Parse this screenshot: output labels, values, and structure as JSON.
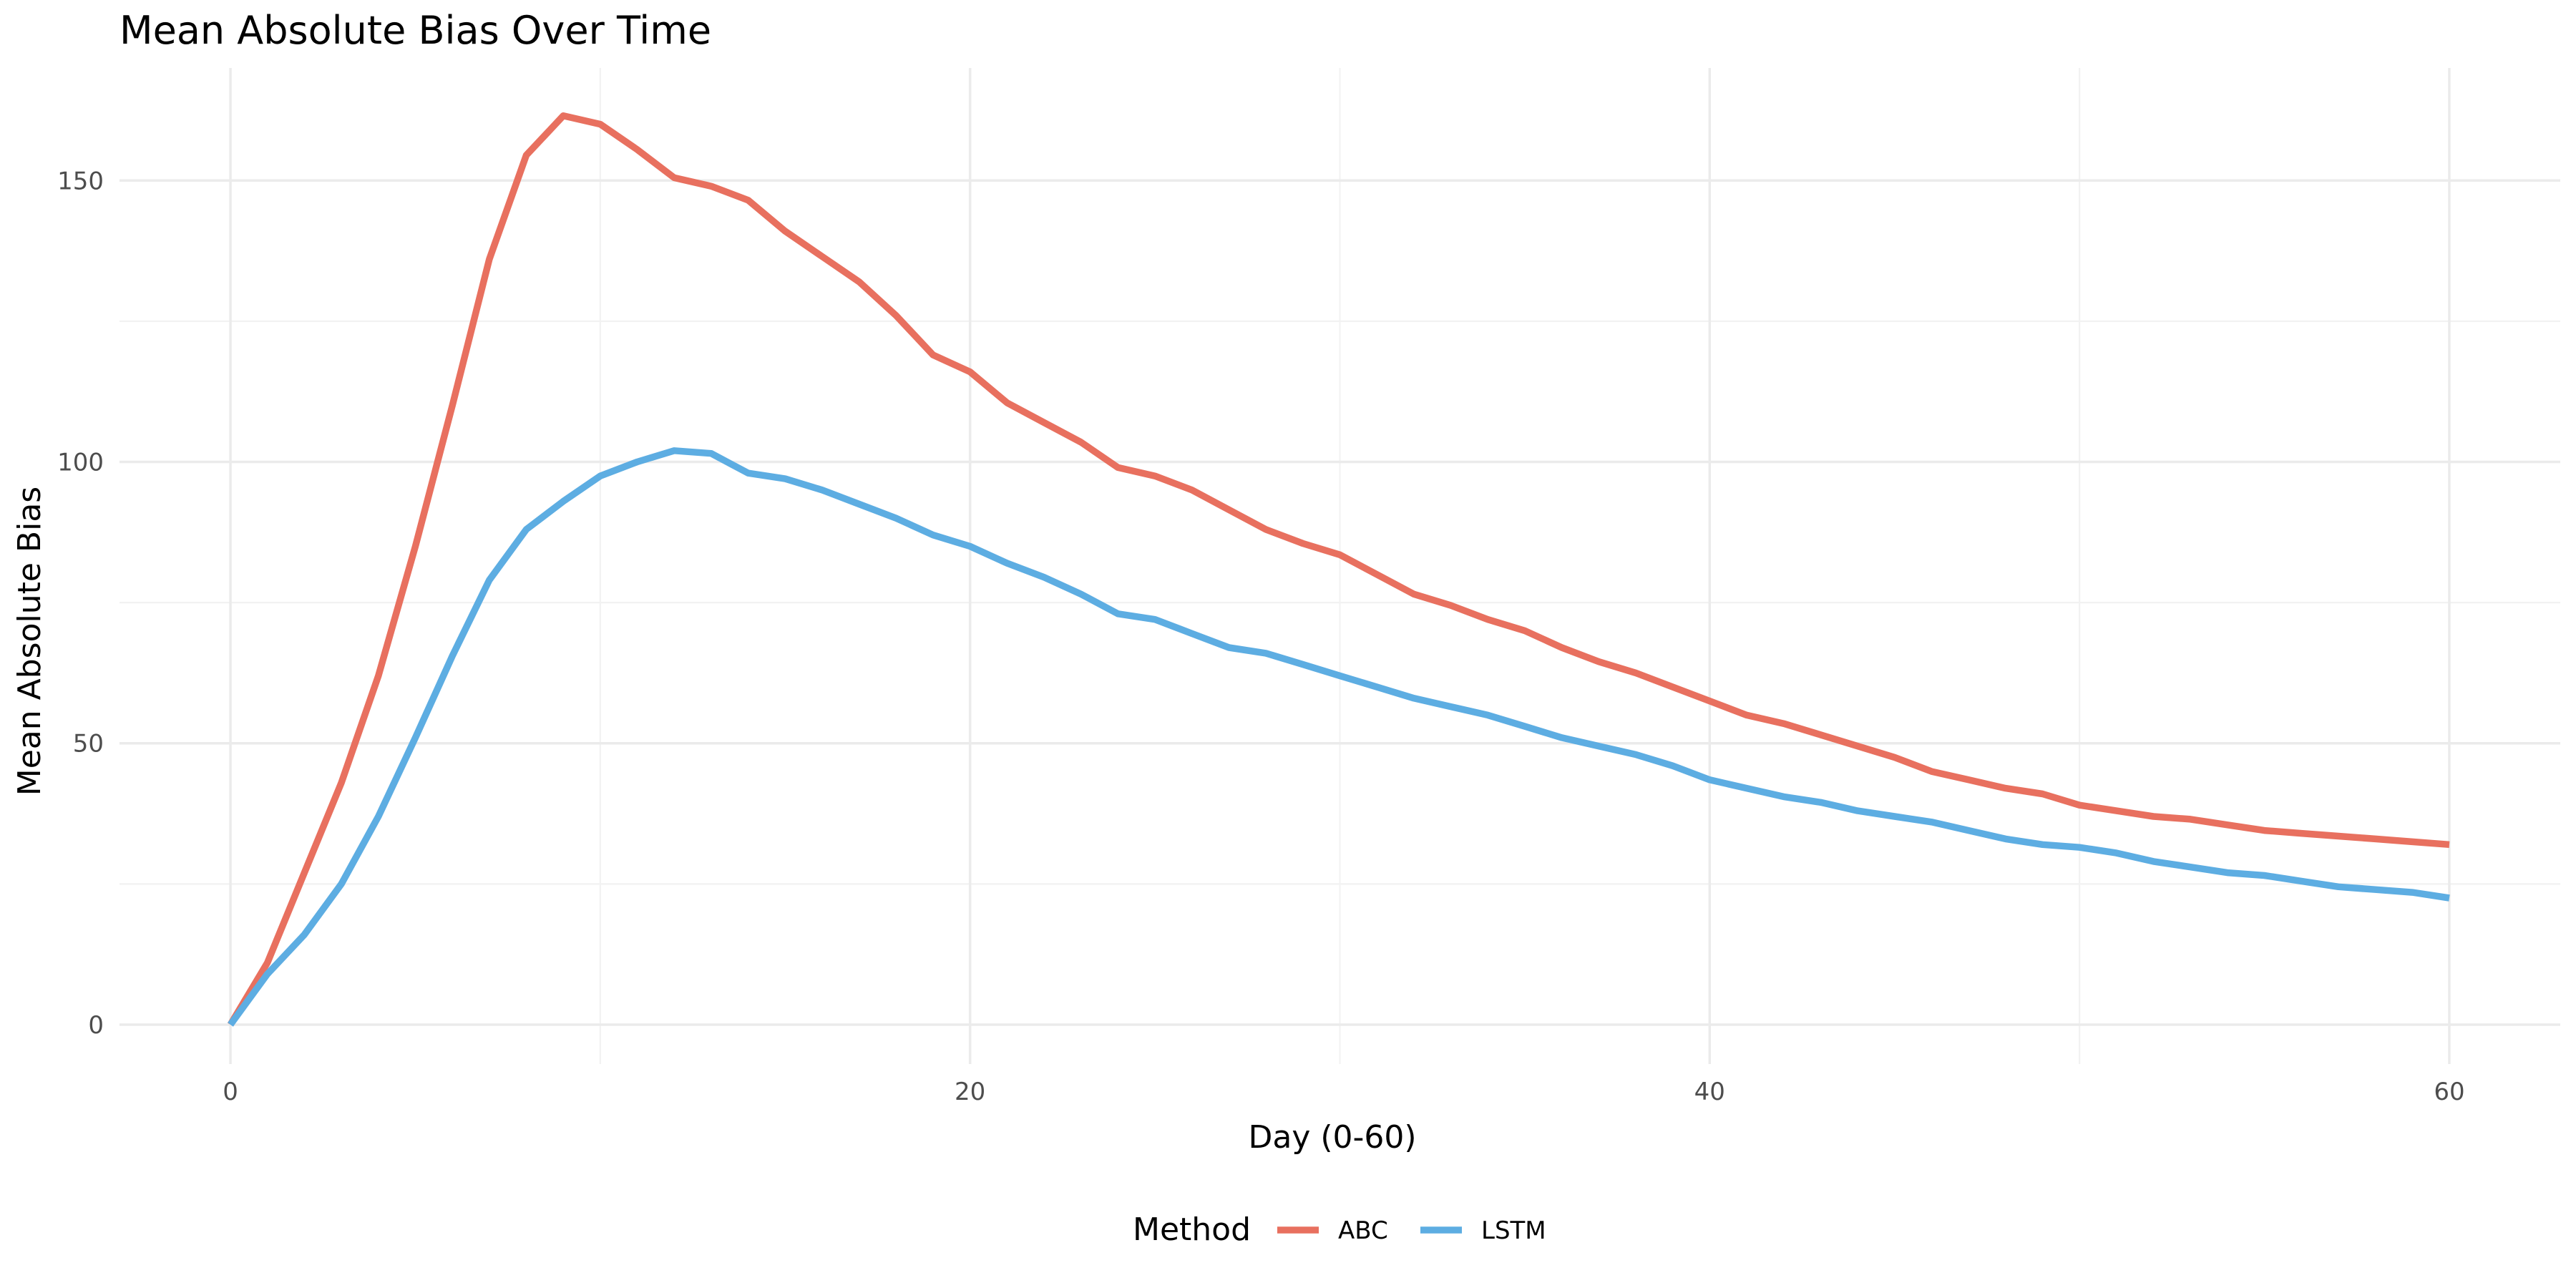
{
  "chart_data": {
    "type": "line",
    "title": "Mean Absolute Bias Over Time",
    "xlabel": "Day (0-60)",
    "ylabel": "Mean Absolute Bias",
    "xlim": [
      -3,
      63
    ],
    "ylim": [
      -7,
      170
    ],
    "x_ticks": [
      0,
      20,
      40,
      60
    ],
    "y_ticks": [
      0,
      50,
      100,
      150
    ],
    "x_minor": [
      10,
      30,
      50
    ],
    "y_minor": [
      25,
      75,
      125
    ],
    "grid": true,
    "legend": {
      "title": "Method",
      "position": "bottom"
    },
    "x": [
      0,
      1,
      2,
      3,
      4,
      5,
      6,
      7,
      8,
      9,
      10,
      11,
      12,
      13,
      14,
      15,
      16,
      17,
      18,
      19,
      20,
      21,
      22,
      23,
      24,
      25,
      26,
      27,
      28,
      29,
      30,
      31,
      32,
      33,
      34,
      35,
      36,
      37,
      38,
      39,
      40,
      41,
      42,
      43,
      44,
      45,
      46,
      47,
      48,
      49,
      50,
      51,
      52,
      53,
      54,
      55,
      56,
      57,
      58,
      59,
      60
    ],
    "series": [
      {
        "name": "ABC",
        "color": "#E8705F",
        "values": [
          0,
          11,
          27,
          43,
          62,
          85,
          110,
          136,
          154.5,
          161.5,
          160,
          155.5,
          150.5,
          149,
          146.5,
          141,
          136.5,
          132,
          126,
          119,
          116,
          110.5,
          107,
          103.5,
          99,
          97.5,
          95,
          91.5,
          88,
          85.5,
          83.5,
          80,
          76.5,
          74.5,
          72,
          70,
          67,
          64.5,
          62.5,
          60,
          57.5,
          55,
          53.5,
          51.5,
          49.5,
          47.5,
          45,
          43.5,
          42,
          41,
          39,
          38,
          37,
          36.5,
          35.5,
          34.5,
          34,
          33.5,
          33,
          32.5,
          32
        ]
      },
      {
        "name": "LSTM",
        "color": "#5DADE2",
        "values": [
          0,
          9,
          16,
          25,
          37,
          51,
          65.5,
          79,
          88,
          93,
          97.5,
          100,
          102,
          101.5,
          98,
          97,
          95,
          92.5,
          90,
          87,
          85,
          82,
          79.5,
          76.5,
          73,
          72,
          69.5,
          67,
          66,
          64,
          62,
          60,
          58,
          56.5,
          55,
          53,
          51,
          49.5,
          48,
          46,
          43.5,
          42,
          40.5,
          39.5,
          38,
          37,
          36,
          34.5,
          33,
          32,
          31.5,
          30.5,
          29,
          28,
          27,
          26.5,
          25.5,
          24.5,
          24,
          23.5,
          22.5
        ]
      }
    ]
  }
}
